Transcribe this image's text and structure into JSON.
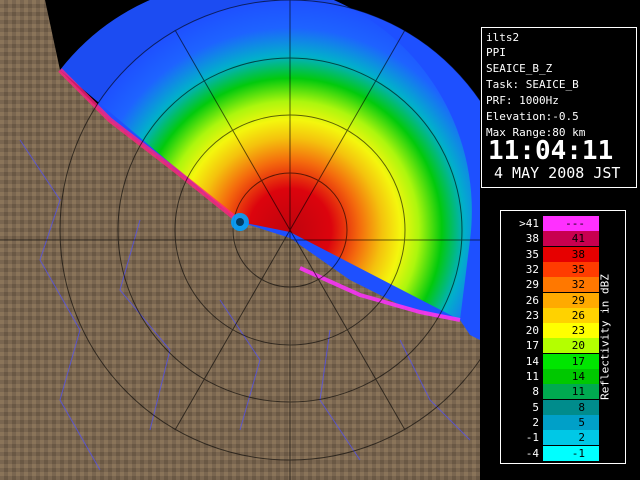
{
  "info": {
    "lines": [
      "ilts2",
      "PPI",
      "SEAICE_B_Z",
      "Task: SEAICE_B",
      "PRF: 1000Hz",
      "Elevation:-0.5",
      "Max Range:80 km"
    ],
    "time": "11:04:11",
    "date": "4 MAY 2008 JST"
  },
  "legend": {
    "title": "Reflectivity in dBZ",
    "rows": [
      {
        "lo": ">41",
        "hi": "---",
        "color": "#ff30ff"
      },
      {
        "lo": "38",
        "hi": "41",
        "color": "#c80050"
      },
      {
        "lo": "35",
        "hi": "38",
        "color": "#e60000"
      },
      {
        "lo": "32",
        "hi": "35",
        "color": "#ff3c00"
      },
      {
        "lo": "29",
        "hi": "32",
        "color": "#ff7800"
      },
      {
        "lo": "26",
        "hi": "29",
        "color": "#ffaa00"
      },
      {
        "lo": "23",
        "hi": "26",
        "color": "#ffd200"
      },
      {
        "lo": "20",
        "hi": "23",
        "color": "#ffff00"
      },
      {
        "lo": "17",
        "hi": "20",
        "color": "#b4ff00"
      },
      {
        "lo": "14",
        "hi": "17",
        "color": "#00e600"
      },
      {
        "lo": "11",
        "hi": "14",
        "color": "#00c800"
      },
      {
        "lo": "8",
        "hi": "11",
        "color": "#00aa50"
      },
      {
        "lo": "5",
        "hi": "8",
        "color": "#008c8c"
      },
      {
        "lo": "2",
        "hi": "5",
        "color": "#00a0c8"
      },
      {
        "lo": "-1",
        "hi": "2",
        "color": "#00c8e6"
      },
      {
        "lo": "-4",
        "hi": "-1",
        "color": "#00ffff"
      }
    ]
  }
}
